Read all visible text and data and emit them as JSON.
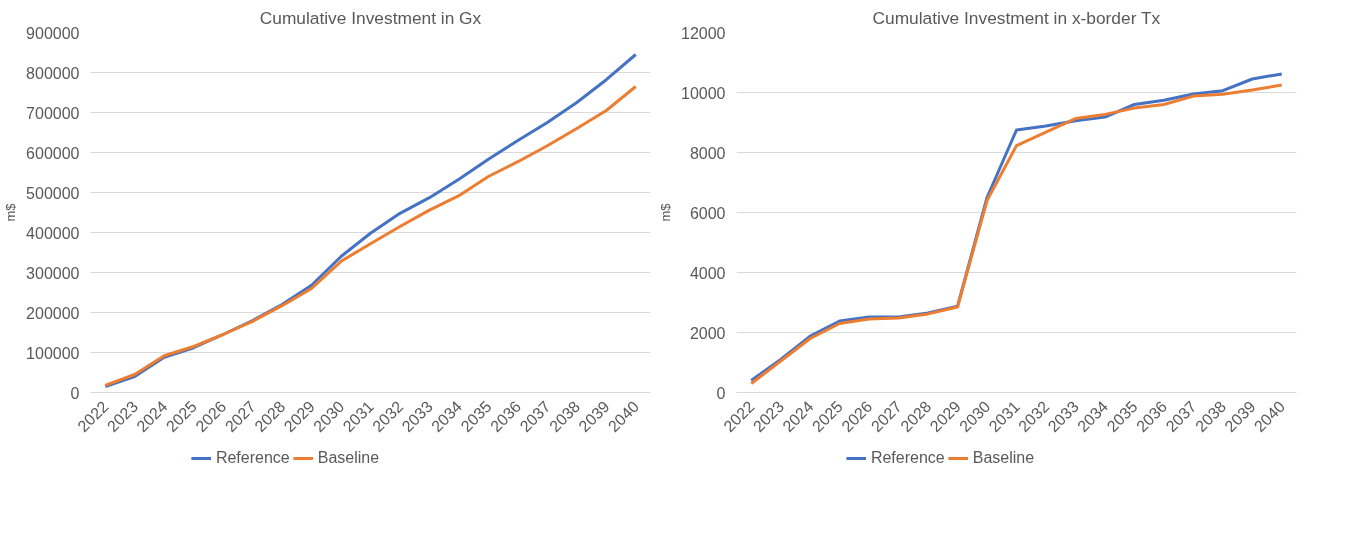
{
  "chart_data": [
    {
      "type": "line",
      "title": "Cumulative Investment in Gx",
      "ylabel": "m$",
      "categories": [
        "2022",
        "2023",
        "2024",
        "2025",
        "2026",
        "2027",
        "2028",
        "2029",
        "2030",
        "2031",
        "2032",
        "2033",
        "2034",
        "2035",
        "2036",
        "2037",
        "2038",
        "2039",
        "2040"
      ],
      "ylim": [
        0,
        900000
      ],
      "yticks": [
        0,
        100000,
        200000,
        300000,
        400000,
        500000,
        600000,
        700000,
        800000,
        900000
      ],
      "grid": "y",
      "legend": "bottom",
      "series": [
        {
          "name": "Reference",
          "color": "#4472c4",
          "values": [
            15000,
            40000,
            88000,
            112000,
            145000,
            180000,
            220000,
            268000,
            340000,
            398000,
            448000,
            487000,
            533000,
            583000,
            630000,
            675000,
            725000,
            782000,
            845000
          ]
        },
        {
          "name": "Baseline",
          "color": "#ed7d31",
          "values": [
            18000,
            45000,
            92000,
            115000,
            145000,
            178000,
            217000,
            260000,
            328000,
            372000,
            415000,
            456000,
            492000,
            540000,
            577000,
            617000,
            660000,
            705000,
            765000
          ]
        }
      ]
    },
    {
      "type": "line",
      "title": "Cumulative Investment in x-border Tx",
      "ylabel": "m$",
      "categories": [
        "2022",
        "2023",
        "2024",
        "2025",
        "2026",
        "2027",
        "2028",
        "2029",
        "2030",
        "2031",
        "2032",
        "2033",
        "2034",
        "2035",
        "2036",
        "2037",
        "2038",
        "2039",
        "2040"
      ],
      "ylim": [
        0,
        12000
      ],
      "yticks": [
        0,
        2000,
        4000,
        6000,
        8000,
        10000,
        12000
      ],
      "grid": "y",
      "legend": "bottom",
      "series": [
        {
          "name": "Reference",
          "color": "#4472c4",
          "values": [
            400,
            1100,
            1880,
            2380,
            2520,
            2520,
            2650,
            2880,
            6500,
            8750,
            8880,
            9060,
            9180,
            9600,
            9740,
            9950,
            10060,
            10450,
            10620
          ]
        },
        {
          "name": "Baseline",
          "color": "#ed7d31",
          "values": [
            300,
            1050,
            1800,
            2300,
            2450,
            2480,
            2620,
            2850,
            6400,
            8230,
            8680,
            9130,
            9270,
            9480,
            9600,
            9880,
            9940,
            10080,
            10250
          ]
        }
      ]
    }
  ]
}
